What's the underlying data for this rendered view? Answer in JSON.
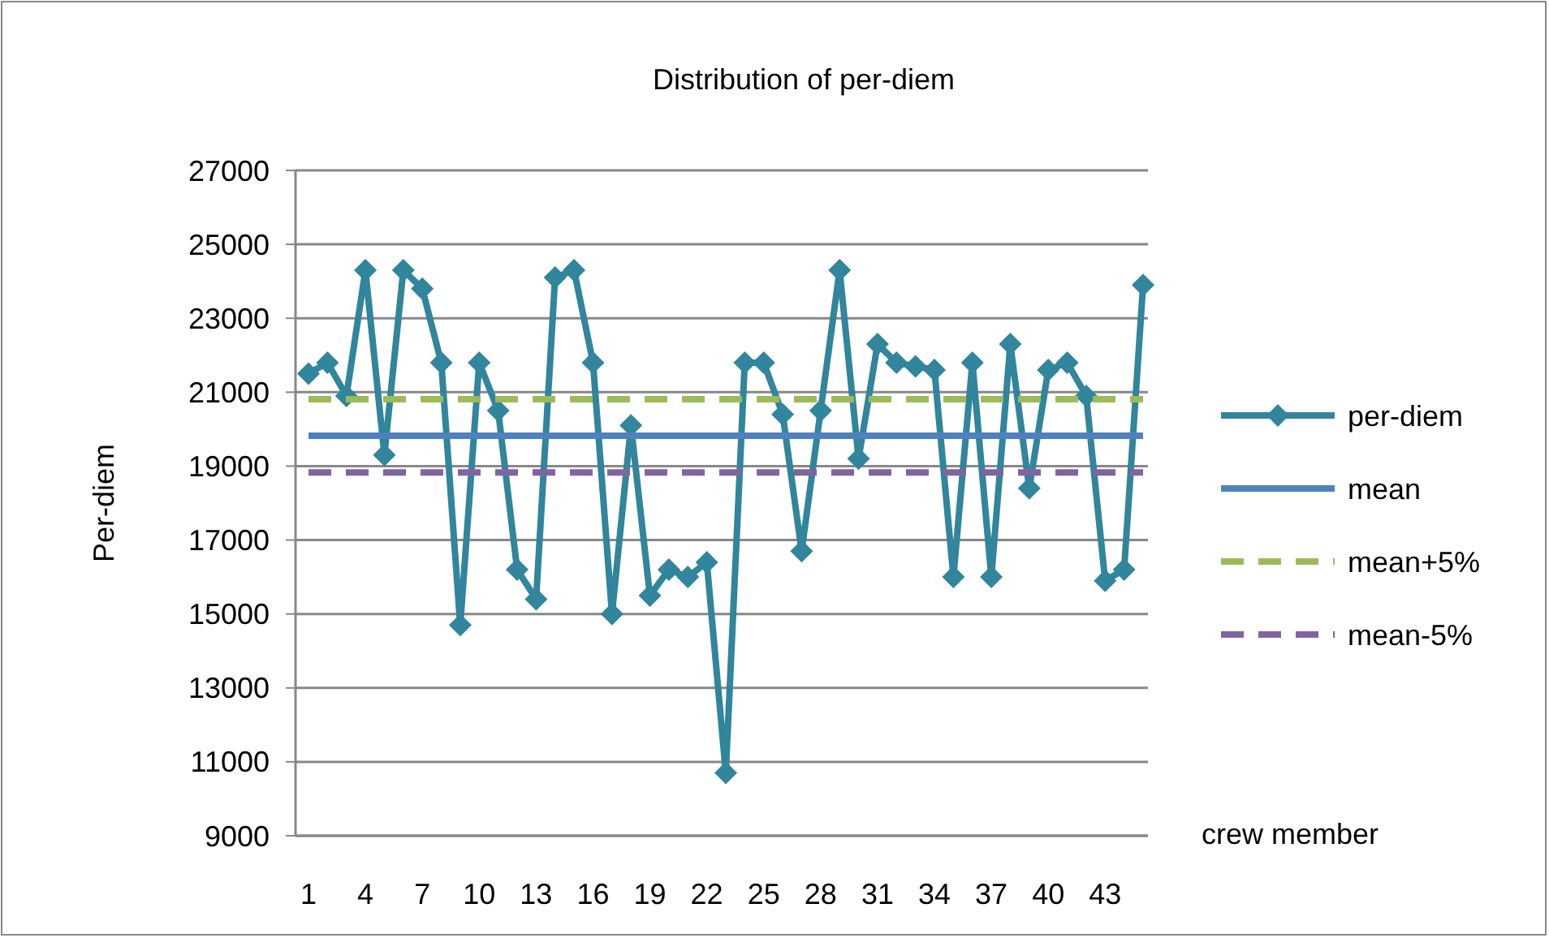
{
  "chart_data": {
    "type": "line",
    "title": "Distribution of per-diem",
    "xlabel": "crew member",
    "ylabel": "Per-diem",
    "categories": [
      "1",
      null,
      null,
      "4",
      null,
      null,
      "7",
      null,
      null,
      "10",
      null,
      null,
      "13",
      null,
      null,
      "16",
      null,
      null,
      "19",
      null,
      null,
      "22",
      null,
      null,
      "25",
      null,
      null,
      "28",
      null,
      null,
      "31",
      null,
      null,
      "34",
      null,
      null,
      "37",
      null,
      null,
      "40",
      null,
      null,
      "43",
      null,
      null
    ],
    "series": [
      {
        "name": "per-diem",
        "color": "#31859c",
        "marker": "diamond",
        "line_style": "solid",
        "values": [
          21500,
          21800,
          20900,
          24300,
          19300,
          24300,
          23800,
          21800,
          14700,
          21800,
          20500,
          16200,
          15400,
          24100,
          24300,
          21800,
          15000,
          20100,
          15500,
          16200,
          16000,
          16400,
          10700,
          21800,
          21800,
          20400,
          16700,
          20500,
          24300,
          19200,
          22300,
          21800,
          21700,
          21600,
          16000,
          21800,
          16000,
          22300,
          18400,
          21600,
          21800,
          20900,
          15900,
          16200,
          23900
        ]
      },
      {
        "name": "mean",
        "color": "#4f81bd",
        "marker": "none",
        "line_style": "solid",
        "values": [
          19820,
          19820,
          19820,
          19820,
          19820,
          19820,
          19820,
          19820,
          19820,
          19820,
          19820,
          19820,
          19820,
          19820,
          19820,
          19820,
          19820,
          19820,
          19820,
          19820,
          19820,
          19820,
          19820,
          19820,
          19820,
          19820,
          19820,
          19820,
          19820,
          19820,
          19820,
          19820,
          19820,
          19820,
          19820,
          19820,
          19820,
          19820,
          19820,
          19820,
          19820,
          19820,
          19820,
          19820,
          19820
        ]
      },
      {
        "name": "mean+5%",
        "color": "#9bbb59",
        "marker": "none",
        "line_style": "dashed",
        "values": [
          20810,
          20810,
          20810,
          20810,
          20810,
          20810,
          20810,
          20810,
          20810,
          20810,
          20810,
          20810,
          20810,
          20810,
          20810,
          20810,
          20810,
          20810,
          20810,
          20810,
          20810,
          20810,
          20810,
          20810,
          20810,
          20810,
          20810,
          20810,
          20810,
          20810,
          20810,
          20810,
          20810,
          20810,
          20810,
          20810,
          20810,
          20810,
          20810,
          20810,
          20810,
          20810,
          20810,
          20810,
          20810
        ]
      },
      {
        "name": "mean-5%",
        "color": "#8064a2",
        "marker": "none",
        "line_style": "dashed",
        "values": [
          18830,
          18830,
          18830,
          18830,
          18830,
          18830,
          18830,
          18830,
          18830,
          18830,
          18830,
          18830,
          18830,
          18830,
          18830,
          18830,
          18830,
          18830,
          18830,
          18830,
          18830,
          18830,
          18830,
          18830,
          18830,
          18830,
          18830,
          18830,
          18830,
          18830,
          18830,
          18830,
          18830,
          18830,
          18830,
          18830,
          18830,
          18830,
          18830,
          18830,
          18830,
          18830,
          18830,
          18830,
          18830
        ]
      }
    ],
    "ylim": [
      9000,
      27000
    ],
    "yticks": [
      9000,
      11000,
      13000,
      15000,
      17000,
      19000,
      21000,
      23000,
      25000,
      27000
    ],
    "grid": "y",
    "legend": "right"
  }
}
